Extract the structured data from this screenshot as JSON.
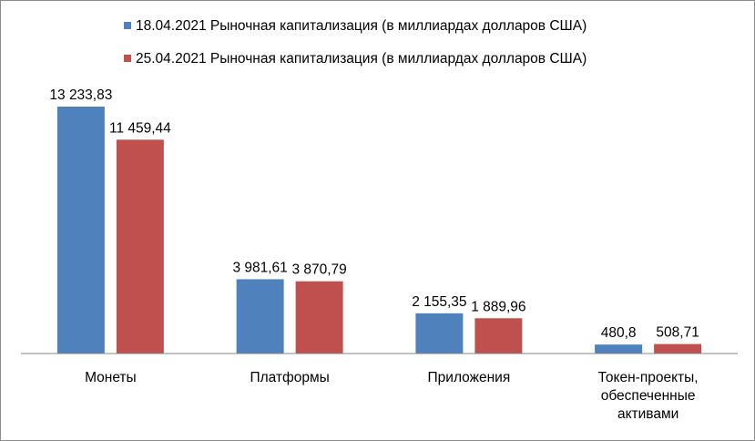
{
  "chart_data": {
    "type": "bar",
    "categories": [
      [
        "Монеты"
      ],
      [
        "Платформы"
      ],
      [
        "Приложения"
      ],
      [
        "Токен-проекты,",
        "обеспеченные",
        "активами"
      ]
    ],
    "series": [
      {
        "name": "18.04.2021 Рыночная капитализация  (в миллиардах долларов США)",
        "color": "#4f81bd",
        "values": [
          13233.83,
          3981.61,
          2155.35,
          480.8
        ],
        "labels": [
          "13 233,83",
          "3 981,61",
          "2 155,35",
          "480,8"
        ]
      },
      {
        "name": "25.04.2021 Рыночная капитализация  (в миллиардах долларов США)",
        "color": "#c0504d",
        "values": [
          11459.44,
          3870.79,
          1889.96,
          508.71
        ],
        "labels": [
          "11 459,44",
          "3 870,79",
          "1 889,96",
          "508,71"
        ]
      }
    ],
    "ylim": [
      0,
      13233.83
    ],
    "grid": false,
    "legend_position": "top"
  }
}
